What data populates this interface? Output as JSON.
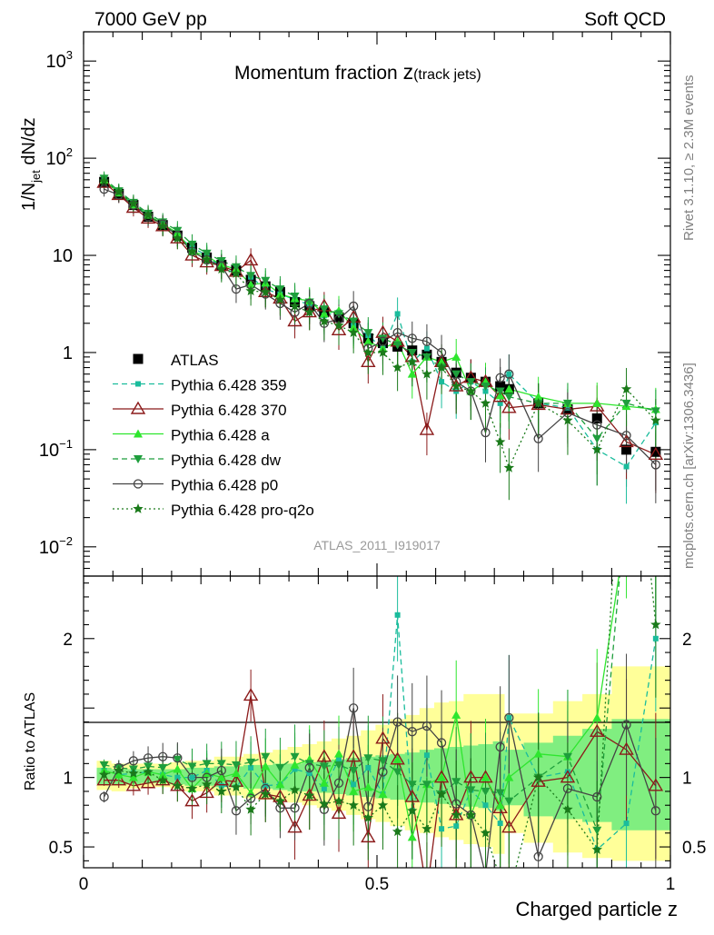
{
  "header": {
    "left": "7000 GeV pp",
    "right": "Soft QCD",
    "plot_title": "Momentum fraction ",
    "plot_title_var": "z",
    "plot_title_sub": "(track jets)",
    "watermark": "ATLAS_2011_I919017",
    "side_label_1": "Rivet 3.1.10, ≥ 2.3M events",
    "side_label_2": "mcplots.cern.ch [arXiv:1306.3436]"
  },
  "colors": {
    "atlas": "#000000",
    "p359": "#1abc9c",
    "p370": "#8b1a1a",
    "pa": "#2ee62e",
    "pdw": "#1e9e3c",
    "pp0": "#444444",
    "pq2o": "#1a7a1a",
    "band_yellow": "#ffff99",
    "band_green": "#80ee80"
  },
  "chart_data": {
    "type": "line",
    "xlabel": "Charged particle z",
    "ylabel_main_prefix": "1/N",
    "ylabel_main_sub": "jet",
    "ylabel_main_suffix": " dN/dz",
    "ylabel_ratio": "Ratio to ATLAS",
    "xlim": [
      0,
      1
    ],
    "ylim_main": [
      0.005,
      2000
    ],
    "ylim_ratio": [
      0.35,
      2.45
    ],
    "x_ticks": [
      "0",
      "0.5",
      "1"
    ],
    "y_ticks_main": [
      {
        "base": "10",
        "exp": "−2"
      },
      {
        "base": "10",
        "exp": "−1"
      },
      {
        "base": "1",
        "exp": ""
      },
      {
        "base": "10",
        "exp": ""
      },
      {
        "base": "10",
        "exp": "2"
      },
      {
        "base": "10",
        "exp": "3"
      }
    ],
    "y_ticks_ratio": [
      "0.5",
      "1",
      "2"
    ],
    "x": [
      0.035,
      0.06,
      0.085,
      0.11,
      0.135,
      0.16,
      0.185,
      0.21,
      0.235,
      0.26,
      0.285,
      0.31,
      0.335,
      0.36,
      0.385,
      0.41,
      0.435,
      0.46,
      0.485,
      0.51,
      0.535,
      0.56,
      0.585,
      0.61,
      0.635,
      0.66,
      0.685,
      0.71,
      0.725,
      0.775,
      0.825,
      0.875,
      0.925,
      0.975
    ],
    "series": [
      {
        "name": "ATLAS",
        "key": "atlas",
        "style": "solid",
        "marker": "square",
        "values": [
          57,
          43,
          33,
          25,
          20.5,
          16,
          12,
          9.5,
          8,
          7,
          5.6,
          4.8,
          4.2,
          3.3,
          3.0,
          2.6,
          2.3,
          2.0,
          1.4,
          1.25,
          1.15,
          1.05,
          0.95,
          0.8,
          0.62,
          0.55,
          0.5,
          0.45,
          0.42,
          0.3,
          0.26,
          0.21,
          0.1,
          0.095
        ],
        "ratio": []
      },
      {
        "name": "Pythia 6.428 359",
        "key": "p359",
        "style": "dashed",
        "marker": "smallsquare",
        "values": [
          60,
          44,
          34,
          26,
          21,
          16,
          12,
          10,
          7.5,
          6.5,
          6.0,
          4.5,
          4.0,
          3.5,
          3.1,
          2.4,
          2.6,
          1.9,
          1.5,
          1.1,
          2.5,
          0.8,
          1.1,
          0.5,
          0.4,
          0.5,
          0.4,
          0.3,
          0.6,
          0.3,
          0.27,
          0.1,
          0.067,
          0.19
        ],
        "ratio": [
          1.05,
          1.02,
          1.03,
          1.04,
          1.02,
          1.0,
          1.0,
          1.05,
          0.94,
          0.93,
          1.07,
          0.94,
          0.95,
          1.06,
          1.03,
          0.92,
          1.13,
          0.95,
          1.07,
          0.88,
          2.17,
          0.76,
          1.16,
          0.63,
          0.65,
          0.91,
          0.8,
          0.67,
          1.43,
          1.0,
          1.04,
          0.48,
          0.67,
          2.0
        ]
      },
      {
        "name": "Pythia 6.428 370",
        "key": "p370",
        "style": "solid",
        "marker": "opentriangle",
        "values": [
          56,
          42,
          31,
          24,
          20,
          15,
          10,
          8.5,
          7.8,
          6.8,
          8.9,
          4.2,
          3.6,
          2.1,
          2.6,
          3.0,
          1.7,
          2.3,
          0.8,
          1.6,
          1.3,
          0.9,
          0.16,
          0.8,
          0.45,
          0.55,
          0.5,
          0.35,
          0.27,
          0.29,
          0.26,
          0.28,
          0.12,
          0.089
        ],
        "ratio": [
          0.98,
          0.98,
          0.94,
          0.96,
          0.98,
          0.94,
          0.83,
          0.89,
          0.98,
          0.97,
          1.59,
          0.88,
          0.86,
          0.64,
          0.87,
          1.15,
          0.74,
          1.15,
          0.57,
          1.28,
          1.13,
          0.86,
          0.17,
          1.0,
          0.73,
          1.0,
          1.0,
          0.78,
          0.64,
          0.97,
          1.0,
          1.33,
          1.2,
          0.94
        ]
      },
      {
        "name": "Pythia 6.428 a",
        "key": "pa",
        "style": "solid",
        "marker": "triangle",
        "values": [
          60,
          44,
          33,
          26,
          21,
          17,
          11,
          9.8,
          8.0,
          7.2,
          5.0,
          5.2,
          4.0,
          3.6,
          3.4,
          2.5,
          2.7,
          1.8,
          1.3,
          1.1,
          1.3,
          0.6,
          0.9,
          0.8,
          0.9,
          0.4,
          0.5,
          0.36,
          0.42,
          0.35,
          0.3,
          0.3,
          0.28,
          0.26
        ],
        "ratio": [
          1.05,
          1.02,
          1.0,
          1.04,
          1.02,
          1.06,
          0.92,
          1.03,
          1.0,
          1.03,
          0.89,
          1.08,
          0.95,
          1.09,
          1.13,
          0.96,
          1.17,
          0.9,
          0.93,
          0.88,
          1.13,
          0.57,
          0.95,
          1.0,
          1.45,
          0.73,
          1.0,
          0.8,
          1.0,
          1.17,
          1.15,
          1.43,
          2.8,
          2.74
        ]
      },
      {
        "name": "Pythia 6.428 dw",
        "key": "pdw",
        "style": "dashed",
        "marker": "invtriangle",
        "values": [
          62,
          46,
          35,
          27,
          22,
          18,
          13,
          10.5,
          8.8,
          7.6,
          6.2,
          5.5,
          4.5,
          3.8,
          3.3,
          2.8,
          2.5,
          2.1,
          1.6,
          1.4,
          1.2,
          1.0,
          0.9,
          0.7,
          0.6,
          0.5,
          0.45,
          0.4,
          0.35,
          0.3,
          0.3,
          0.13,
          0.3,
          0.25
        ],
        "ratio": [
          1.09,
          1.07,
          1.06,
          1.08,
          1.07,
          1.13,
          1.08,
          1.1,
          1.1,
          1.09,
          1.11,
          1.15,
          1.07,
          1.15,
          1.1,
          1.08,
          1.09,
          1.05,
          1.14,
          1.12,
          1.04,
          0.95,
          0.95,
          0.88,
          0.97,
          0.91,
          0.9,
          0.89,
          0.83,
          1.0,
          1.15,
          0.62,
          3.0,
          2.63
        ]
      },
      {
        "name": "Pythia 6.428 p0",
        "key": "pp0",
        "style": "solid",
        "marker": "opencircle",
        "values": [
          48,
          42,
          33,
          25,
          21,
          16,
          11,
          9.0,
          7.8,
          4.5,
          5.0,
          4.0,
          3.2,
          2.6,
          3.2,
          2.0,
          2.2,
          3.0,
          1.1,
          1.3,
          1.6,
          1.4,
          1.3,
          1.0,
          0.5,
          0.4,
          0.15,
          0.55,
          0.6,
          0.13,
          0.24,
          0.18,
          0.14,
          0.07
        ],
        "ratio": [
          0.86,
          1.07,
          1.12,
          1.14,
          1.15,
          1.14,
          1.0,
          1.0,
          1.05,
          0.76,
          0.85,
          0.92,
          0.78,
          0.78,
          1.07,
          0.77,
          0.96,
          1.5,
          0.79,
          1.04,
          1.4,
          1.33,
          1.37,
          1.25,
          0.81,
          0.73,
          0.3,
          1.22,
          1.43,
          0.43,
          0.92,
          0.86,
          1.38,
          0.76
        ]
      },
      {
        "name": "Pythia 6.428 pro-q2o",
        "key": "pq2o",
        "style": "dotted",
        "marker": "star",
        "values": [
          58,
          45,
          34,
          26,
          20,
          15,
          11,
          9.0,
          7.2,
          6.5,
          4.3,
          4.2,
          3.5,
          3.0,
          2.6,
          2.1,
          1.9,
          1.6,
          1.0,
          1.0,
          0.7,
          0.8,
          0.6,
          0.7,
          0.45,
          0.4,
          0.3,
          0.12,
          0.065,
          0.3,
          0.2,
          0.1,
          0.42,
          0.2
        ],
        "ratio": [
          1.02,
          1.05,
          1.03,
          1.04,
          0.98,
          0.94,
          0.92,
          0.95,
          0.9,
          0.93,
          0.77,
          0.88,
          0.83,
          0.91,
          0.87,
          0.81,
          0.83,
          0.8,
          0.71,
          0.8,
          0.61,
          0.76,
          0.63,
          0.88,
          0.73,
          0.73,
          0.6,
          0.27,
          0.15,
          1.0,
          0.77,
          0.48,
          4.2,
          2.1
        ]
      }
    ],
    "band_yellow": [
      [
        0.91,
        1.12
      ],
      [
        0.9,
        1.1
      ],
      [
        0.92,
        1.1
      ],
      [
        0.93,
        1.1
      ],
      [
        0.93,
        1.1
      ],
      [
        0.92,
        1.11
      ],
      [
        0.9,
        1.12
      ],
      [
        0.9,
        1.12
      ],
      [
        0.87,
        1.15
      ],
      [
        0.87,
        1.15
      ],
      [
        0.85,
        1.17
      ],
      [
        0.84,
        1.18
      ],
      [
        0.83,
        1.2
      ],
      [
        0.82,
        1.22
      ],
      [
        0.8,
        1.24
      ],
      [
        0.78,
        1.26
      ],
      [
        0.76,
        1.28
      ],
      [
        0.73,
        1.3
      ],
      [
        0.7,
        1.34
      ],
      [
        0.68,
        1.38
      ],
      [
        0.65,
        1.42
      ],
      [
        0.62,
        1.45
      ],
      [
        0.6,
        1.5
      ],
      [
        0.57,
        1.54
      ],
      [
        0.55,
        1.55
      ],
      [
        0.52,
        1.6
      ],
      [
        0.5,
        1.6
      ],
      [
        0.45,
        1.6
      ],
      [
        0.6,
        1.46
      ],
      [
        0.53,
        1.46
      ],
      [
        0.46,
        1.55
      ],
      [
        0.42,
        1.6
      ],
      [
        0.4,
        1.8
      ],
      [
        0.4,
        1.8
      ]
    ],
    "band_green": [
      [
        0.95,
        1.07
      ],
      [
        0.95,
        1.06
      ],
      [
        0.95,
        1.06
      ],
      [
        0.96,
        1.06
      ],
      [
        0.96,
        1.06
      ],
      [
        0.95,
        1.06
      ],
      [
        0.94,
        1.07
      ],
      [
        0.94,
        1.07
      ],
      [
        0.93,
        1.08
      ],
      [
        0.93,
        1.08
      ],
      [
        0.92,
        1.09
      ],
      [
        0.92,
        1.09
      ],
      [
        0.91,
        1.1
      ],
      [
        0.9,
        1.1
      ],
      [
        0.9,
        1.11
      ],
      [
        0.89,
        1.12
      ],
      [
        0.88,
        1.13
      ],
      [
        0.87,
        1.14
      ],
      [
        0.86,
        1.15
      ],
      [
        0.85,
        1.16
      ],
      [
        0.84,
        1.17
      ],
      [
        0.83,
        1.18
      ],
      [
        0.82,
        1.2
      ],
      [
        0.81,
        1.21
      ],
      [
        0.8,
        1.22
      ],
      [
        0.79,
        1.23
      ],
      [
        0.78,
        1.24
      ],
      [
        0.76,
        1.26
      ],
      [
        0.8,
        1.2
      ],
      [
        0.72,
        1.25
      ],
      [
        0.7,
        1.3
      ],
      [
        0.68,
        1.35
      ],
      [
        0.62,
        1.42
      ],
      [
        0.62,
        1.42
      ]
    ]
  }
}
